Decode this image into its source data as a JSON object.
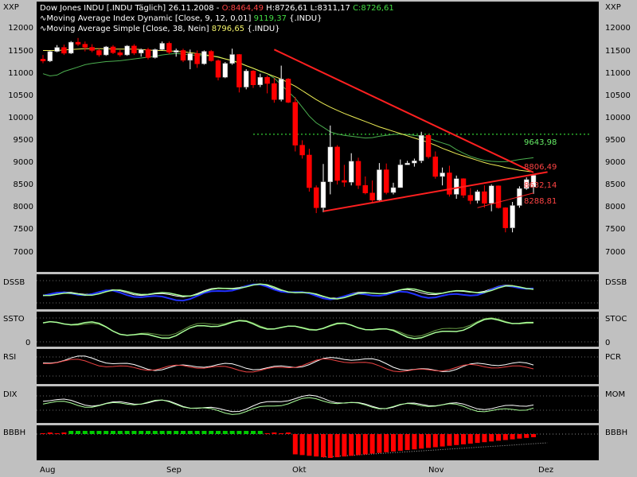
{
  "corner": {
    "left": "XXP",
    "right": "XXP"
  },
  "legend": {
    "line1_prefix": "Dow Jones INDU [.INDU  Täglich] 26.11.2008 - ",
    "open": "O:8464,49",
    "high": " H:8726,61",
    "low": " L:8311,17 ",
    "close": "C:8726,61",
    "line2_label": "Moving Average Index Dynamic [Close, 9, 12, 0,01] ",
    "line2_value": "9119,37",
    "line2_suffix": " {.INDU}",
    "line3_label": "Moving Average Simple [Close, 38, Nein] ",
    "line3_value": "8796,65",
    "line3_suffix": " {.INDU}"
  },
  "y_axis_ticks": [
    "12000",
    "11500",
    "11000",
    "10500",
    "10000",
    "9500",
    "9000",
    "8500",
    "8000",
    "7500",
    "7000"
  ],
  "price_labels": {
    "resistance": "9643,98",
    "ma_value": "8806,49",
    "current": "8632,14",
    "support": "8288,81"
  },
  "indicators": {
    "dssb": {
      "left": "DSSB",
      "right": "DSSB"
    },
    "ssto": {
      "left": "SSTO",
      "right": "STOC",
      "zero_left": "0",
      "zero_right": "0"
    },
    "rsi": {
      "left": "RSI",
      "right": "PCR"
    },
    "dix": {
      "left": "DIX",
      "right": "MOM"
    },
    "bbbh": {
      "left": "BBBH",
      "right": "BBBH"
    }
  },
  "x_axis": [
    "Aug",
    "Sep",
    "Okt",
    "Nov",
    "Dez"
  ],
  "colors": {
    "bull": "#ffffff",
    "bear": "#ff0000",
    "ma_fast": "#4caf50",
    "ma_slow": "#eeee55",
    "trend": "#ff2020",
    "dssb_main": "#2233ff",
    "osc": "#aaff99",
    "hist_pos": "#00cc00",
    "hist_neg": "#ff0000"
  },
  "chart_data": {
    "type": "candlestick",
    "title": "Dow Jones INDU [.INDU  Täglich] 26.11.2008",
    "ylim": [
      6600,
      12400
    ],
    "x_ticks": [
      "Aug",
      "Sep",
      "Okt",
      "Nov",
      "Dez"
    ],
    "candles": [
      [
        11326,
        11420,
        11234,
        11284
      ],
      [
        11284,
        11520,
        11260,
        11498
      ],
      [
        11498,
        11640,
        11480,
        11588
      ],
      [
        11588,
        11650,
        11420,
        11458
      ],
      [
        11458,
        11730,
        11440,
        11705
      ],
      [
        11705,
        11800,
        11620,
        11660
      ],
      [
        11660,
        11720,
        11500,
        11590
      ],
      [
        11590,
        11660,
        11480,
        11520
      ],
      [
        11520,
        11560,
        11380,
        11420
      ],
      [
        11420,
        11620,
        11400,
        11600
      ],
      [
        11600,
        11640,
        11440,
        11470
      ],
      [
        11470,
        11530,
        11380,
        11420
      ],
      [
        11420,
        11640,
        11400,
        11620
      ],
      [
        11620,
        11660,
        11420,
        11460
      ],
      [
        11460,
        11560,
        11380,
        11540
      ],
      [
        11540,
        11580,
        11320,
        11360
      ],
      [
        11360,
        11560,
        11340,
        11540
      ],
      [
        11540,
        11720,
        11520,
        11680
      ],
      [
        11680,
        11720,
        11440,
        11480
      ],
      [
        11480,
        11560,
        11380,
        11520
      ],
      [
        11520,
        11560,
        11260,
        11300
      ],
      [
        11300,
        11540,
        11100,
        11450
      ],
      [
        11450,
        11520,
        11130,
        11220
      ],
      [
        11220,
        11520,
        11200,
        11500
      ],
      [
        11500,
        11530,
        11270,
        11290
      ],
      [
        11290,
        11320,
        10850,
        10920
      ],
      [
        10920,
        11260,
        10900,
        11230
      ],
      [
        11230,
        11560,
        11200,
        11430
      ],
      [
        11430,
        11440,
        10580,
        10700
      ],
      [
        10700,
        11100,
        10650,
        11060
      ],
      [
        11060,
        11080,
        10680,
        10750
      ],
      [
        10750,
        11000,
        10700,
        10920
      ],
      [
        10920,
        10960,
        10560,
        10780
      ],
      [
        10780,
        10900,
        10350,
        10420
      ],
      [
        10420,
        11180,
        10380,
        10880
      ],
      [
        10880,
        10900,
        10340,
        10360
      ],
      [
        10360,
        10480,
        9260,
        9400
      ],
      [
        9400,
        9510,
        9100,
        9180
      ],
      [
        9180,
        9320,
        8360,
        8450
      ],
      [
        8450,
        8500,
        7880,
        8000
      ],
      [
        8000,
        8980,
        7900,
        8580
      ],
      [
        8580,
        9840,
        8300,
        9360
      ],
      [
        9360,
        9400,
        8520,
        8610
      ],
      [
        8610,
        8960,
        8470,
        8570
      ],
      [
        8570,
        9220,
        8500,
        9040
      ],
      [
        9040,
        9120,
        8420,
        8500
      ],
      [
        8500,
        8700,
        8300,
        8330
      ],
      [
        8330,
        8610,
        8110,
        8170
      ],
      [
        8170,
        9000,
        8130,
        8850
      ],
      [
        8850,
        8990,
        8300,
        8340
      ],
      [
        8340,
        8560,
        8300,
        8450
      ],
      [
        8450,
        9080,
        8450,
        8960
      ],
      [
        8960,
        9050,
        8970,
        9000
      ],
      [
        9000,
        9100,
        8920,
        9050
      ],
      [
        9050,
        9700,
        9000,
        9620
      ],
      [
        9620,
        9650,
        9100,
        9140
      ],
      [
        9140,
        9260,
        8650,
        8700
      ],
      [
        8700,
        8900,
        8500,
        8780
      ],
      [
        8780,
        8940,
        8250,
        8300
      ],
      [
        8300,
        8720,
        8200,
        8650
      ],
      [
        8650,
        8660,
        8220,
        8280
      ],
      [
        8280,
        8440,
        8080,
        8160
      ],
      [
        8160,
        8400,
        8100,
        8360
      ],
      [
        8360,
        8500,
        8000,
        8100
      ],
      [
        8100,
        8520,
        7920,
        8490
      ],
      [
        8490,
        8500,
        7980,
        8000
      ],
      [
        8000,
        8010,
        7450,
        7550
      ],
      [
        7550,
        8130,
        7450,
        8050
      ],
      [
        8050,
        8480,
        8000,
        8430
      ],
      [
        8430,
        8680,
        8400,
        8630
      ],
      [
        8464,
        8726,
        8311,
        8726
      ]
    ],
    "series": [
      {
        "name": "Moving Average Index Dynamic [Close, 9, 12, 0,01]",
        "values": [
          11000,
          10950,
          10970,
          11050,
          11100,
          11150,
          11200,
          11230,
          11250,
          11270,
          11280,
          11290,
          11310,
          11330,
          11350,
          11370,
          11390,
          11420,
          11440,
          11450,
          11440,
          11420,
          11410,
          11400,
          11400,
          11380,
          11330,
          11300,
          11250,
          11180,
          11120,
          11050,
          11000,
          10900,
          10750,
          10600,
          10450,
          10250,
          10050,
          9900,
          9800,
          9700,
          9650,
          9620,
          9600,
          9580,
          9560,
          9570,
          9600,
          9620,
          9640,
          9650,
          9640,
          9620,
          9600,
          9560,
          9500,
          9450,
          9400,
          9300,
          9220,
          9150,
          9100,
          9060,
          9040,
          9030,
          9030,
          9050,
          9080,
          9100,
          9119
        ]
      },
      {
        "name": "Moving Average Simple [Close, 38, Nein]",
        "values": [
          11520,
          11520,
          11520,
          11530,
          11540,
          11550,
          11560,
          11560,
          11560,
          11560,
          11550,
          11550,
          11550,
          11550,
          11540,
          11530,
          11520,
          11520,
          11510,
          11500,
          11490,
          11470,
          11450,
          11430,
          11400,
          11370,
          11330,
          11290,
          11240,
          11180,
          11120,
          11060,
          11000,
          10940,
          10880,
          10800,
          10720,
          10620,
          10520,
          10420,
          10330,
          10250,
          10180,
          10110,
          10050,
          9990,
          9930,
          9870,
          9810,
          9760,
          9710,
          9660,
          9610,
          9560,
          9510,
          9460,
          9400,
          9330,
          9270,
          9210,
          9160,
          9110,
          9060,
          9010,
          8970,
          8940,
          8900,
          8870,
          8840,
          8820,
          8797
        ]
      }
    ],
    "lines": [
      {
        "name": "resistance",
        "from": [
          33,
          11540
        ],
        "to": [
          70,
          8790
        ]
      },
      {
        "name": "support",
        "from": [
          40,
          7920
        ],
        "to": [
          72,
          8800
        ]
      },
      {
        "name": "level",
        "value": 9644
      }
    ]
  }
}
